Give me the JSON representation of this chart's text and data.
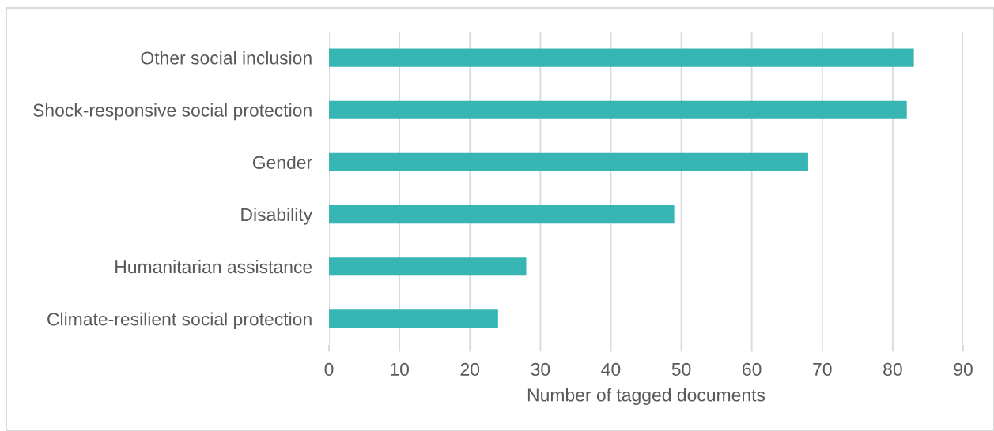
{
  "chart_data": {
    "type": "bar",
    "orientation": "horizontal",
    "categories": [
      "Other social inclusion",
      "Shock-responsive social protection",
      "Gender",
      "Disability",
      "Humanitarian assistance",
      "Climate-resilient social protection"
    ],
    "values": [
      83,
      82,
      68,
      49,
      28,
      24
    ],
    "color": "#36b5b3",
    "xlabel": "Number of tagged documents",
    "xlim": [
      0,
      90
    ],
    "xticks": [
      0,
      10,
      20,
      30,
      40,
      50,
      60,
      70,
      80,
      90
    ],
    "grid": "x",
    "legend": false
  }
}
